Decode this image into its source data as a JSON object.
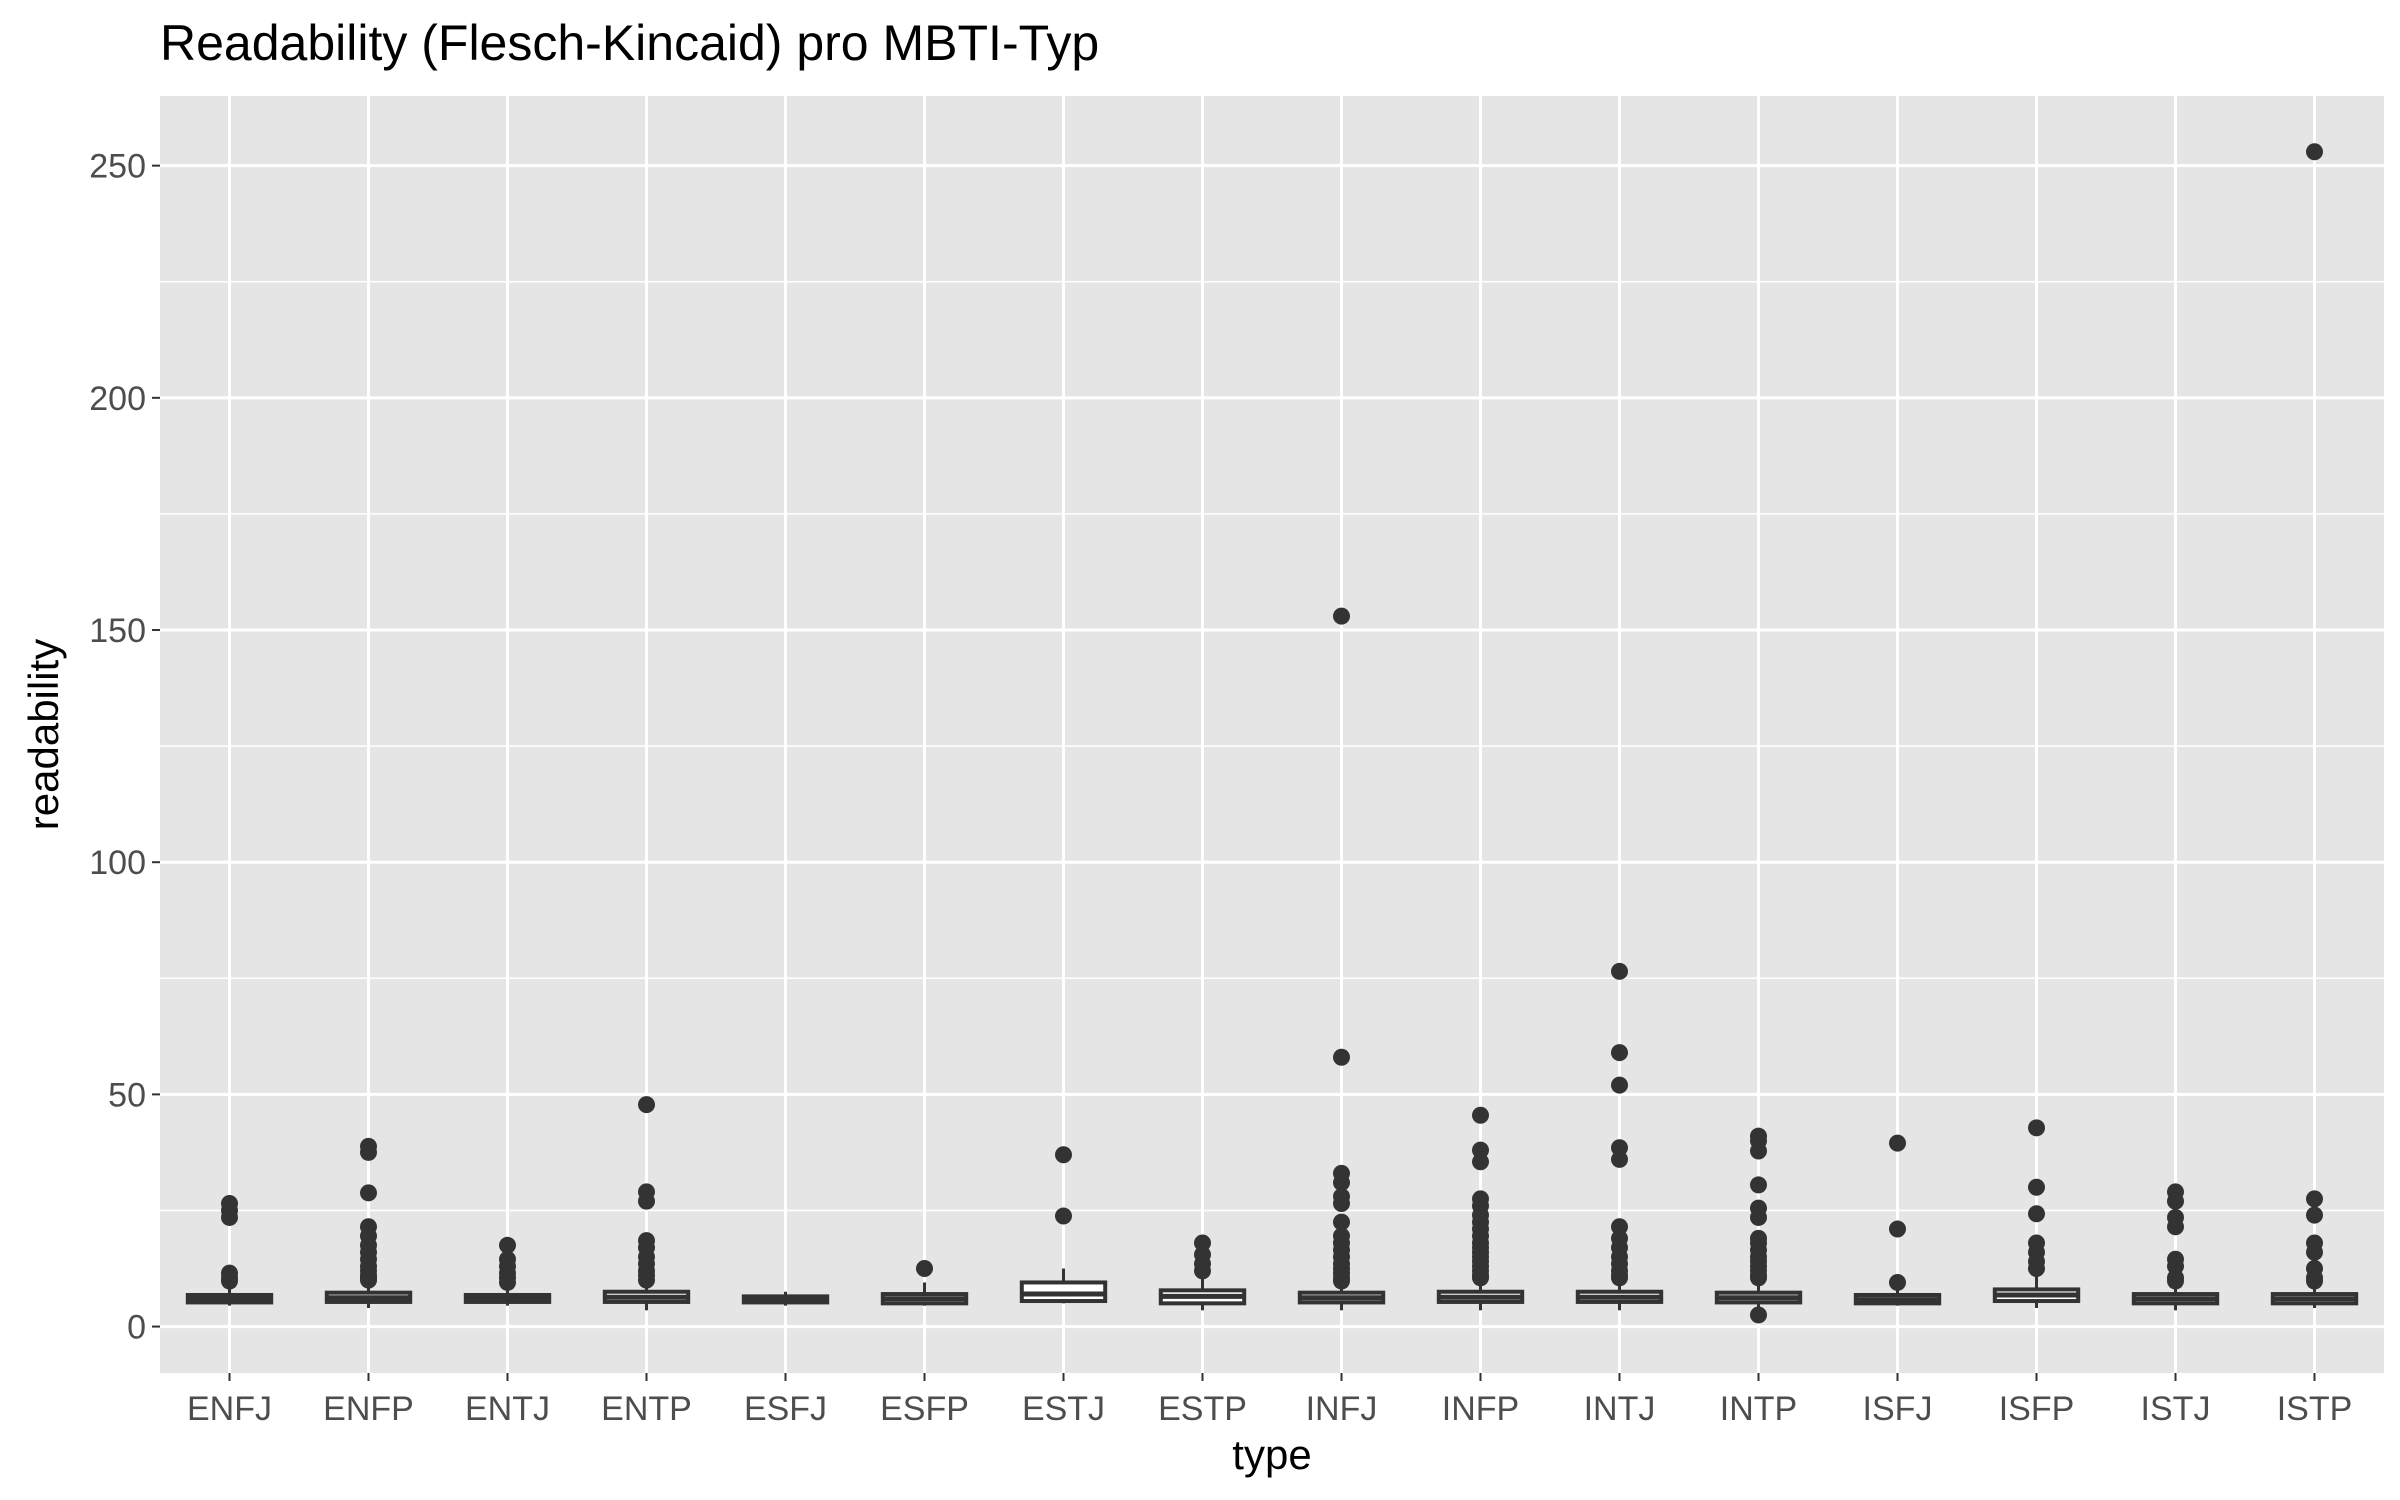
{
  "chart_data": {
    "type": "boxplot",
    "title": "Readability (Flesch-Kincaid) pro MBTI-Typ",
    "xlabel": "type",
    "ylabel": "readability",
    "ylim": [
      -10,
      265
    ],
    "yticks": [
      0,
      50,
      100,
      150,
      200,
      250
    ],
    "grid": true,
    "colors": {
      "panel": "#e5e5e5",
      "grid": "#ffffff",
      "box_line": "#333333",
      "box_fill": "#ffffff",
      "outlier": "#333333",
      "tick_text": "#4d4d4d"
    },
    "categories": [
      "ENFJ",
      "ENFP",
      "ENTJ",
      "ENTP",
      "ESFJ",
      "ESFP",
      "ESTJ",
      "ESTP",
      "INFJ",
      "INFP",
      "INTJ",
      "INTP",
      "ISFJ",
      "ISFP",
      "ISTJ",
      "ISTP"
    ],
    "boxes": [
      {
        "category": "ENFJ",
        "lower_whisker": 4.5,
        "q1": 5.2,
        "median": 6.0,
        "q3": 6.8,
        "upper_whisker": 8.5,
        "outliers": [
          26.5,
          25.0,
          23.5,
          11.5,
          10.5,
          9.8
        ]
      },
      {
        "category": "ENFP",
        "lower_whisker": 4.0,
        "q1": 5.3,
        "median": 6.2,
        "q3": 7.3,
        "upper_whisker": 9.5,
        "outliers": [
          38.8,
          37.5,
          28.8,
          21.5,
          19.5,
          17.5,
          16.0,
          14.5,
          13.0,
          12.0,
          11.0,
          10.5,
          10.0
        ]
      },
      {
        "category": "ENTJ",
        "lower_whisker": 4.5,
        "q1": 5.3,
        "median": 6.0,
        "q3": 6.8,
        "upper_whisker": 8.5,
        "outliers": [
          17.5,
          14.5,
          13.0,
          11.5,
          10.5,
          9.5
        ]
      },
      {
        "category": "ENTP",
        "lower_whisker": 3.5,
        "q1": 5.3,
        "median": 6.3,
        "q3": 7.5,
        "upper_whisker": 9.5,
        "outliers": [
          47.8,
          29.0,
          27.0,
          18.5,
          17.0,
          15.0,
          13.5,
          12.0,
          11.0,
          10.0
        ]
      },
      {
        "category": "ESFJ",
        "lower_whisker": 4.5,
        "q1": 5.2,
        "median": 5.8,
        "q3": 6.5,
        "upper_whisker": 7.5,
        "outliers": []
      },
      {
        "category": "ESFP",
        "lower_whisker": 4.5,
        "q1": 5.0,
        "median": 6.0,
        "q3": 7.0,
        "upper_whisker": 9.5,
        "outliers": [
          12.5
        ]
      },
      {
        "category": "ESTJ",
        "lower_whisker": 5.0,
        "q1": 5.5,
        "median": 7.0,
        "q3": 9.5,
        "upper_whisker": 12.5,
        "outliers": [
          37.0,
          23.8
        ]
      },
      {
        "category": "ESTP",
        "lower_whisker": 3.5,
        "q1": 5.0,
        "median": 6.5,
        "q3": 7.8,
        "upper_whisker": 11.0,
        "outliers": [
          18.0,
          15.5,
          13.5,
          12.0
        ]
      },
      {
        "category": "INFJ",
        "lower_whisker": 3.5,
        "q1": 5.2,
        "median": 6.2,
        "q3": 7.3,
        "upper_whisker": 9.5,
        "outliers": [
          153.0,
          58.0,
          33.0,
          31.0,
          28.0,
          26.5,
          22.5,
          19.5,
          18.0,
          16.5,
          15.0,
          13.5,
          12.5,
          11.5,
          10.5,
          9.8
        ]
      },
      {
        "category": "INFP",
        "lower_whisker": 3.5,
        "q1": 5.3,
        "median": 6.3,
        "q3": 7.5,
        "upper_whisker": 10.0,
        "outliers": [
          45.5,
          38.0,
          35.5,
          27.5,
          26.0,
          24.0,
          22.5,
          21.0,
          19.5,
          18.0,
          17.0,
          16.0,
          15.0,
          14.0,
          13.0,
          12.0,
          11.0,
          10.5
        ]
      },
      {
        "category": "INTJ",
        "lower_whisker": 3.5,
        "q1": 5.3,
        "median": 6.3,
        "q3": 7.5,
        "upper_whisker": 10.0,
        "outliers": [
          76.5,
          59.0,
          52.0,
          38.5,
          36.0,
          21.5,
          19.0,
          17.0,
          15.0,
          13.5,
          12.0,
          11.0,
          10.5
        ]
      },
      {
        "category": "INTP",
        "lower_whisker": 3.5,
        "q1": 5.2,
        "median": 6.2,
        "q3": 7.3,
        "upper_whisker": 9.5,
        "outliers": [
          41.0,
          40.0,
          37.8,
          30.5,
          25.5,
          23.5,
          19.0,
          18.0,
          16.5,
          15.0,
          14.0,
          13.0,
          12.0,
          11.0,
          10.5,
          2.5
        ]
      },
      {
        "category": "ISFJ",
        "lower_whisker": 4.5,
        "q1": 5.0,
        "median": 5.8,
        "q3": 6.8,
        "upper_whisker": 8.5,
        "outliers": [
          39.5,
          21.0,
          9.5
        ]
      },
      {
        "category": "ISFP",
        "lower_whisker": 4.0,
        "q1": 5.5,
        "median": 6.8,
        "q3": 8.0,
        "upper_whisker": 11.0,
        "outliers": [
          42.8,
          30.0,
          24.3,
          18.0,
          16.0,
          14.0,
          12.5
        ]
      },
      {
        "category": "ISTJ",
        "lower_whisker": 3.5,
        "q1": 5.0,
        "median": 6.0,
        "q3": 7.0,
        "upper_whisker": 9.0,
        "outliers": [
          29.0,
          27.0,
          23.5,
          21.5,
          14.5,
          13.0,
          10.5,
          9.8
        ]
      },
      {
        "category": "ISTP",
        "lower_whisker": 4.0,
        "q1": 5.0,
        "median": 6.0,
        "q3": 7.0,
        "upper_whisker": 9.0,
        "outliers": [
          253.0,
          27.5,
          24.0,
          18.0,
          16.0,
          12.5,
          10.5,
          9.8
        ]
      }
    ]
  }
}
